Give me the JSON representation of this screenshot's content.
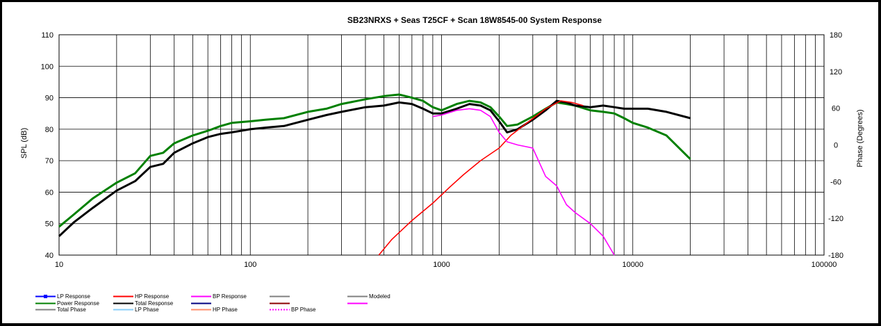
{
  "chart_data": {
    "type": "line",
    "title": "SB23NRXS  + Seas T25CF  + Scan 18W8545-00   System Response",
    "xlabel": "",
    "ylabel": "SPL (dB)",
    "y2label": "Phase (Degrees)",
    "x_scale": "log",
    "xlim": [
      10,
      100000
    ],
    "ylim": [
      40,
      110
    ],
    "y2lim": [
      -180,
      180
    ],
    "x_ticks": [
      "10",
      "100",
      "1000",
      "10000",
      "100000"
    ],
    "y_ticks": [
      "40",
      "50",
      "60",
      "70",
      "80",
      "90",
      "100",
      "110"
    ],
    "y2_ticks": [
      "-180",
      "-120",
      "-60",
      "0",
      "60",
      "120",
      "180"
    ],
    "grid": true,
    "legend_position": "bottom",
    "series": [
      {
        "name": "Power Response",
        "color": "#008000",
        "x": [
          10,
          12,
          15,
          20,
          25,
          30,
          35,
          40,
          50,
          60,
          70,
          80,
          100,
          120,
          150,
          200,
          250,
          300,
          400,
          500,
          600,
          700,
          800,
          900,
          1000,
          1200,
          1400,
          1600,
          1800,
          2000,
          2200,
          2500,
          3000,
          3500,
          4000,
          4500,
          5000,
          6000,
          7000,
          8000,
          9000,
          10000,
          12000,
          15000,
          20000
        ],
        "y": [
          49,
          53,
          58,
          63,
          66,
          71.5,
          72.5,
          75.5,
          78,
          79.5,
          81,
          82,
          82.5,
          83,
          83.5,
          85.5,
          86.5,
          88,
          89.5,
          90.5,
          91,
          90,
          89,
          87,
          86,
          88,
          89,
          88.5,
          87,
          84,
          81,
          81.5,
          84,
          86.5,
          88.5,
          88,
          87.5,
          86,
          85.5,
          85,
          83.5,
          82,
          80.5,
          78,
          70.5
        ]
      },
      {
        "name": "Total Response",
        "color": "#000000",
        "x": [
          10,
          12,
          15,
          20,
          25,
          30,
          35,
          40,
          50,
          60,
          70,
          80,
          100,
          120,
          150,
          200,
          250,
          300,
          400,
          500,
          600,
          700,
          800,
          900,
          1000,
          1200,
          1400,
          1600,
          1800,
          2000,
          2200,
          2500,
          3000,
          3500,
          4000,
          4500,
          5000,
          6000,
          7000,
          8000,
          9000,
          10000,
          12000,
          15000,
          20000
        ],
        "y": [
          46,
          50.5,
          55,
          60.5,
          63.5,
          68,
          69,
          72.5,
          75.5,
          77.5,
          78.5,
          79,
          80,
          80.5,
          81,
          83,
          84.5,
          85.5,
          87,
          87.5,
          88.5,
          88,
          86.5,
          85,
          85,
          86.5,
          88,
          87.5,
          86,
          82.5,
          79,
          80,
          83,
          86,
          89,
          88.5,
          87.5,
          87,
          87.5,
          87,
          86.5,
          86.5,
          86.5,
          85.5,
          83.5
        ]
      },
      {
        "name": "HP Response",
        "color": "#ff0000",
        "x": [
          470,
          550,
          700,
          900,
          1100,
          1300,
          1600,
          2000,
          2300,
          2800,
          3500,
          4200,
          4800,
          5500
        ],
        "y": [
          40,
          45,
          51,
          56.5,
          61.5,
          65.5,
          70,
          74,
          78,
          82,
          86.5,
          89,
          88.5,
          87.5
        ]
      },
      {
        "name": "BP Response",
        "color": "#ff00ff",
        "x": [
          900,
          1000,
          1200,
          1400,
          1600,
          1800,
          2000,
          2200,
          2500,
          3000,
          3500,
          4000,
          4500,
          5000,
          6000,
          7000,
          8000
        ],
        "y": [
          84,
          84.5,
          86,
          86.5,
          86,
          84,
          79,
          76,
          75,
          74,
          65,
          62,
          56,
          53.5,
          50,
          46,
          40
        ]
      }
    ],
    "legend": [
      {
        "label": "LP Response",
        "color": "#0000ff",
        "dash": false,
        "marker": true
      },
      {
        "label": "HP Response",
        "color": "#ff0000",
        "dash": false,
        "marker": false
      },
      {
        "label": "BP Response",
        "color": "#ff00ff",
        "dash": false,
        "marker": false
      },
      {
        "label": "",
        "color": "#808080",
        "dash": false,
        "marker": false
      },
      {
        "label": "Modeled",
        "color": "#808080",
        "dash": false,
        "marker": false
      },
      {
        "label": "Power Response",
        "color": "#008000",
        "dash": false,
        "marker": false
      },
      {
        "label": "Total Response",
        "color": "#000000",
        "dash": false,
        "marker": false
      },
      {
        "label": "",
        "color": "#000080",
        "dash": false,
        "marker": false
      },
      {
        "label": "",
        "color": "#8b0000",
        "dash": false,
        "marker": false
      },
      {
        "label": "",
        "color": "#ff00ff",
        "dash": false,
        "marker": false
      },
      {
        "label": "Total Phase",
        "color": "#808080",
        "dash": false,
        "marker": false
      },
      {
        "label": "LP Phase",
        "color": "#87cefa",
        "dash": false,
        "marker": false
      },
      {
        "label": "HP Phase",
        "color": "#ff8c69",
        "dash": false,
        "marker": false
      },
      {
        "label": "BP Phase",
        "color": "#ff00ff",
        "dash": true,
        "marker": false
      }
    ]
  }
}
